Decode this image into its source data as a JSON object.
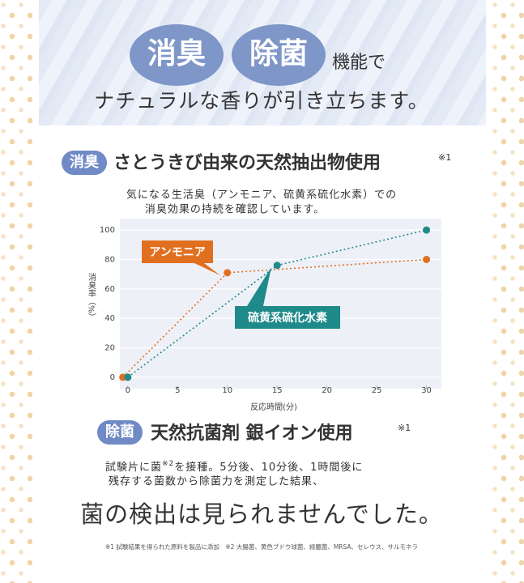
{
  "header": {
    "badges": [
      "消臭",
      "除菌"
    ],
    "suffix": "機能で",
    "subtitle": "ナチュラルな香りが引き立ちます。"
  },
  "section1": {
    "badge": "消臭",
    "title": "さとうきび由来の天然抽出物使用",
    "note": "※1",
    "description": [
      "気になる生活臭（アンモニア、硫黄系硫化水素）での",
      "消臭効果の持続を確認しています。"
    ]
  },
  "chart_data": {
    "type": "line",
    "x_label": "反応時間(分)",
    "y_label": "消臭率（%）",
    "xlim": [
      -0.8,
      31.5
    ],
    "ylim": [
      -5,
      105
    ],
    "xticks": [
      0,
      5,
      10,
      15,
      20,
      25,
      30
    ],
    "yticks": [
      0,
      20,
      40,
      60,
      80,
      100
    ],
    "grid": true,
    "series": [
      {
        "name": "アンモニア",
        "color": "#e0701f",
        "x": [
          -0.5,
          10,
          30
        ],
        "values": [
          0,
          71,
          80
        ]
      },
      {
        "name": "硫黄系硫化水素",
        "color": "#1f8a8a",
        "x": [
          0,
          15,
          30
        ],
        "values": [
          0,
          76,
          100
        ]
      }
    ]
  },
  "section2": {
    "badge": "除菌",
    "title": "天然抗菌剤 銀イオン使用",
    "note": "※1",
    "description_line1": [
      "試験片に菌",
      "※2",
      "を接種。5分後、10分後、1時間後に"
    ],
    "description_line2": "残存する菌数から除菌力を測定した結果、",
    "result": "菌の検出は見られませんでした。"
  },
  "footnotes": "※1 試験結果を得られた原料を製品に添加　※2 大腸菌、黄色ブドウ球菌、緑膿菌、MRSA、セレウス、サルモネラ"
}
